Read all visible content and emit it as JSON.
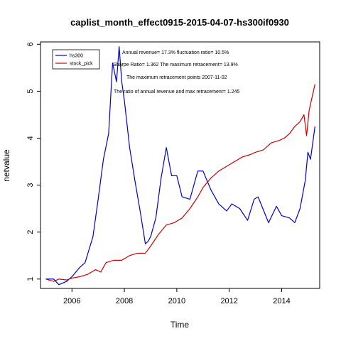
{
  "chart_data": {
    "type": "line",
    "title": "caplist_month_effect0915-2015-04-07-hs300if0930",
    "xlabel": "Time",
    "ylabel": "netvalue",
    "xlim": [
      2004.8,
      2015.45
    ],
    "ylim": [
      0.8,
      6.05
    ],
    "x_ticks": [
      2006,
      2008,
      2010,
      2012,
      2014
    ],
    "y_ticks": [
      1,
      2,
      3,
      4,
      5,
      6
    ],
    "grid": false,
    "legend_position": "top-left",
    "annotations": [
      "Annual revenue= 17.3% fluctuation ratio= 10.5%",
      "Sharpe Ratio= 1.362 The maximum retracement= 13.9%",
      "The maximum retracement points 2007-11-02",
      "The ratio of annual revenue and max retracement= 1.245"
    ],
    "series": [
      {
        "name": "hs300",
        "color": "#0000cc",
        "x": [
          2005.0,
          2005.3,
          2005.5,
          2005.8,
          2006.0,
          2006.3,
          2006.5,
          2006.8,
          2007.0,
          2007.2,
          2007.4,
          2007.55,
          2007.7,
          2007.8,
          2007.9,
          2008.0,
          2008.2,
          2008.4,
          2008.6,
          2008.8,
          2008.9,
          2009.0,
          2009.2,
          2009.4,
          2009.6,
          2009.8,
          2010.0,
          2010.2,
          2010.5,
          2010.8,
          2011.0,
          2011.3,
          2011.6,
          2011.9,
          2012.1,
          2012.4,
          2012.7,
          2012.95,
          2013.1,
          2013.5,
          2013.8,
          2014.0,
          2014.3,
          2014.5,
          2014.7,
          2014.9,
          2015.0,
          2015.1,
          2015.27
        ],
        "y": [
          1.0,
          1.0,
          0.88,
          0.95,
          1.05,
          1.25,
          1.35,
          1.9,
          2.7,
          3.55,
          4.1,
          5.6,
          5.2,
          5.95,
          5.2,
          4.8,
          3.8,
          3.1,
          2.45,
          1.75,
          1.8,
          1.9,
          2.3,
          3.15,
          3.8,
          3.2,
          3.2,
          2.75,
          2.7,
          3.3,
          3.3,
          2.9,
          2.6,
          2.45,
          2.6,
          2.5,
          2.25,
          2.7,
          2.75,
          2.2,
          2.55,
          2.35,
          2.3,
          2.2,
          2.5,
          3.1,
          3.7,
          3.55,
          4.25
        ]
      },
      {
        "name": "stock_pick",
        "color": "#cc0000",
        "x": [
          2005.0,
          2005.3,
          2005.5,
          2005.8,
          2006.0,
          2006.3,
          2006.6,
          2006.9,
          2007.1,
          2007.3,
          2007.6,
          2007.9,
          2008.2,
          2008.5,
          2008.8,
          2009.0,
          2009.3,
          2009.6,
          2009.9,
          2010.2,
          2010.5,
          2010.8,
          2011.0,
          2011.3,
          2011.6,
          2011.9,
          2012.2,
          2012.5,
          2012.8,
          2013.0,
          2013.3,
          2013.6,
          2013.9,
          2014.1,
          2014.3,
          2014.5,
          2014.7,
          2014.85,
          2014.95,
          2015.05,
          2015.15,
          2015.27
        ],
        "y": [
          1.0,
          0.95,
          1.0,
          0.98,
          1.02,
          1.05,
          1.1,
          1.2,
          1.15,
          1.35,
          1.4,
          1.4,
          1.5,
          1.55,
          1.55,
          1.7,
          1.95,
          2.15,
          2.2,
          2.3,
          2.5,
          2.75,
          2.95,
          3.15,
          3.3,
          3.4,
          3.5,
          3.6,
          3.65,
          3.7,
          3.75,
          3.9,
          3.95,
          4.0,
          4.1,
          4.25,
          4.35,
          4.5,
          4.05,
          4.6,
          4.85,
          5.15
        ]
      }
    ]
  }
}
